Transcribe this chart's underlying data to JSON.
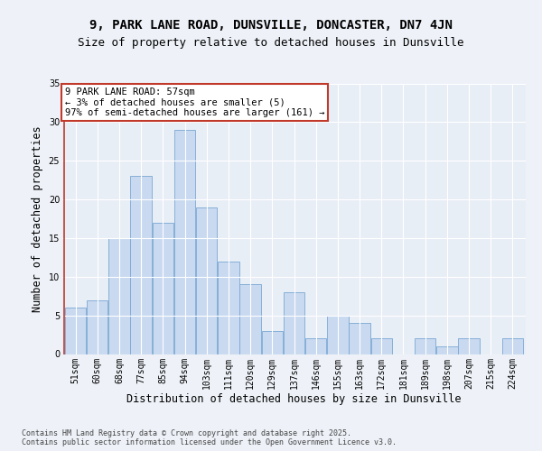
{
  "title1": "9, PARK LANE ROAD, DUNSVILLE, DONCASTER, DN7 4JN",
  "title2": "Size of property relative to detached houses in Dunsville",
  "xlabel": "Distribution of detached houses by size in Dunsville",
  "ylabel": "Number of detached properties",
  "categories": [
    "51sqm",
    "60sqm",
    "68sqm",
    "77sqm",
    "85sqm",
    "94sqm",
    "103sqm",
    "111sqm",
    "120sqm",
    "129sqm",
    "137sqm",
    "146sqm",
    "155sqm",
    "163sqm",
    "172sqm",
    "181sqm",
    "189sqm",
    "198sqm",
    "207sqm",
    "215sqm",
    "224sqm"
  ],
  "values": [
    6,
    7,
    15,
    23,
    17,
    29,
    19,
    12,
    9,
    3,
    8,
    2,
    5,
    4,
    2,
    0,
    2,
    1,
    2,
    0,
    2
  ],
  "bar_color": "#c9d9f0",
  "bar_edge_color": "#7aa8d4",
  "highlight_color": "#c0392b",
  "annotation_text": "9 PARK LANE ROAD: 57sqm\n← 3% of detached houses are smaller (5)\n97% of semi-detached houses are larger (161) →",
  "annotation_box_color": "#ffffff",
  "annotation_edge_color": "#c0392b",
  "ylim": [
    0,
    35
  ],
  "yticks": [
    0,
    5,
    10,
    15,
    20,
    25,
    30,
    35
  ],
  "footer": "Contains HM Land Registry data © Crown copyright and database right 2025.\nContains public sector information licensed under the Open Government Licence v3.0.",
  "bg_color": "#eef2f8",
  "plot_bg_color": "#e8eef6",
  "grid_color": "#ffffff",
  "title_fontsize": 10,
  "subtitle_fontsize": 9,
  "tick_fontsize": 7,
  "label_fontsize": 8.5,
  "footer_fontsize": 6,
  "annotation_fontsize": 7.5
}
